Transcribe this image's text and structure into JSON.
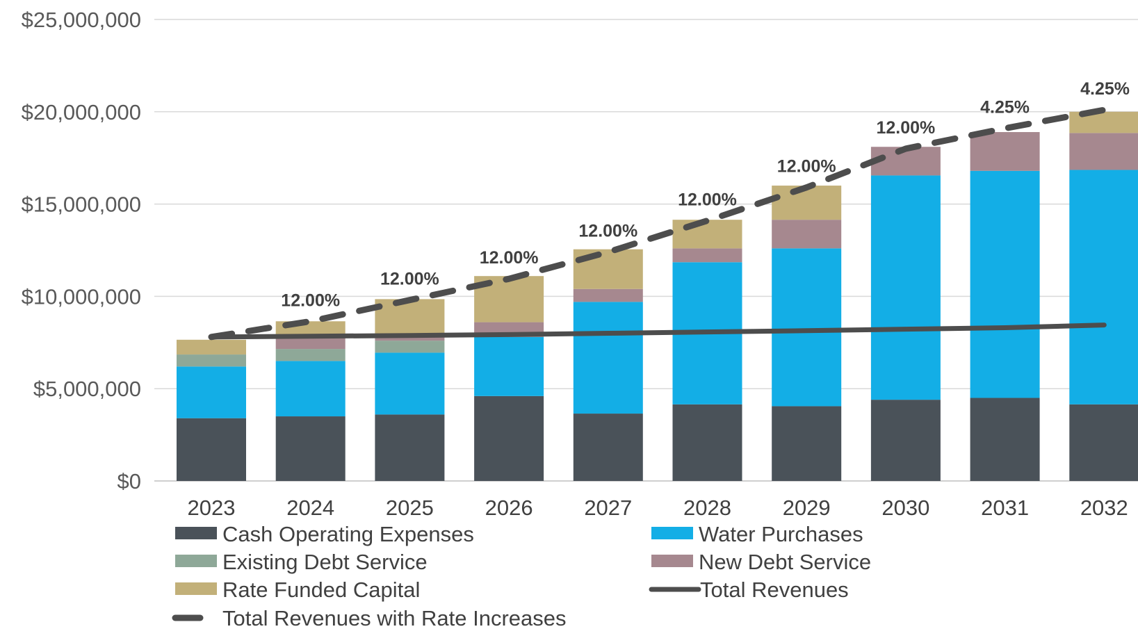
{
  "chart_data": {
    "type": "bar",
    "stacked": true,
    "title": "",
    "xlabel": "",
    "ylabel": "",
    "ylim": [
      0,
      25000000
    ],
    "y_ticks": [
      0,
      5000000,
      10000000,
      15000000,
      20000000,
      25000000
    ],
    "y_tick_labels": [
      "$0",
      "$5,000,000",
      "$10,000,000",
      "$15,000,000",
      "$20,000,000",
      "$25,000,000"
    ],
    "grid": true,
    "legend_position": "bottom",
    "categories": [
      "2023",
      "2024",
      "2025",
      "2026",
      "2027",
      "2028",
      "2029",
      "2030",
      "2031",
      "2032"
    ],
    "series": [
      {
        "name": "Cash Operating Expenses",
        "kind": "bar",
        "color": "#4a5259",
        "values": [
          3400000,
          3500000,
          3600000,
          4600000,
          3650000,
          4150000,
          4050000,
          4400000,
          4500000,
          4150000
        ]
      },
      {
        "name": "Water Purchases",
        "kind": "bar",
        "color": "#13aee6",
        "values": [
          2800000,
          3000000,
          3350000,
          3200000,
          6050000,
          7700000,
          8550000,
          12150000,
          12300000,
          12700000
        ]
      },
      {
        "name": "Existing Debt Service",
        "kind": "bar",
        "color": "#8ea898",
        "values": [
          650000,
          650000,
          650000,
          0,
          0,
          0,
          0,
          0,
          0,
          0
        ]
      },
      {
        "name": "New Debt Service",
        "kind": "bar",
        "color": "#a6888f",
        "values": [
          0,
          650000,
          200000,
          800000,
          700000,
          750000,
          1550000,
          1550000,
          2100000,
          2000000
        ]
      },
      {
        "name": "Rate Funded Capital",
        "kind": "bar",
        "color": "#c2b079",
        "values": [
          800000,
          850000,
          2050000,
          2500000,
          2150000,
          1550000,
          1850000,
          0,
          0,
          1150000
        ]
      },
      {
        "name": "Total Revenues",
        "kind": "line",
        "style": "solid",
        "color": "#4d4d4d",
        "values": [
          7800000,
          7840000,
          7880000,
          7930000,
          8000000,
          8070000,
          8140000,
          8220000,
          8300000,
          8450000
        ]
      },
      {
        "name": "Total Revenues with Rate Increases",
        "kind": "line",
        "style": "dashed",
        "color": "#4d4d4d",
        "values": [
          7800000,
          8650000,
          9800000,
          10950000,
          12400000,
          14100000,
          15900000,
          18000000,
          19100000,
          20100000
        ]
      }
    ],
    "annotations": [
      "",
      "12.00%",
      "12.00%",
      "12.00%",
      "12.00%",
      "12.00%",
      "12.00%",
      "12.00%",
      "4.25%",
      "4.25%"
    ]
  }
}
